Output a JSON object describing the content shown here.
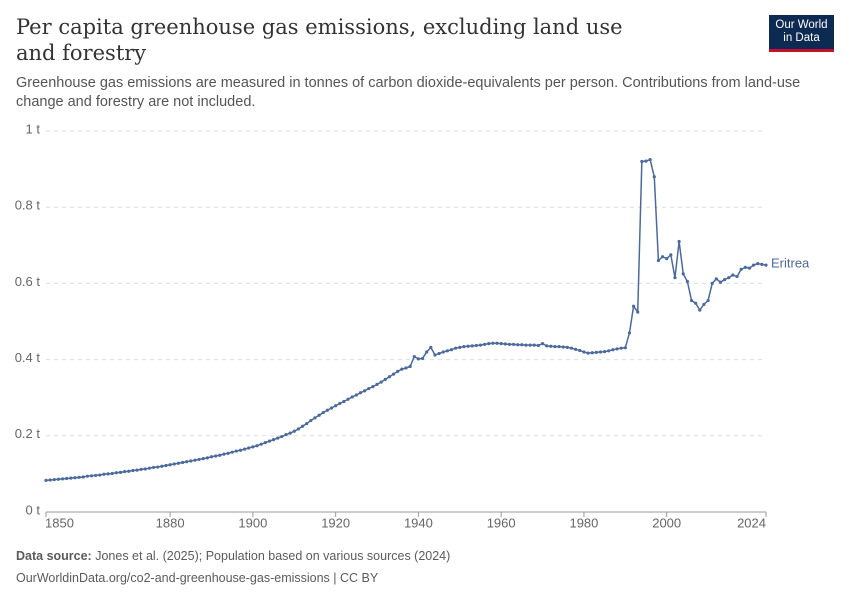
{
  "logo": [
    "Our World",
    "in Data"
  ],
  "chart_data": {
    "type": "line",
    "title": "Per capita greenhouse gas emissions, excluding land use and forestry",
    "subtitle": "Greenhouse gas emissions are measured in tonnes of carbon dioxide-equivalents per person. Contributions from land-use change and forestry are not included.",
    "x": [
      1850,
      1851,
      1852,
      1853,
      1854,
      1855,
      1856,
      1857,
      1858,
      1859,
      1860,
      1861,
      1862,
      1863,
      1864,
      1865,
      1866,
      1867,
      1868,
      1869,
      1870,
      1871,
      1872,
      1873,
      1874,
      1875,
      1876,
      1877,
      1878,
      1879,
      1880,
      1881,
      1882,
      1883,
      1884,
      1885,
      1886,
      1887,
      1888,
      1889,
      1890,
      1891,
      1892,
      1893,
      1894,
      1895,
      1896,
      1897,
      1898,
      1899,
      1900,
      1901,
      1902,
      1903,
      1904,
      1905,
      1906,
      1907,
      1908,
      1909,
      1910,
      1911,
      1912,
      1913,
      1914,
      1915,
      1916,
      1917,
      1918,
      1919,
      1920,
      1921,
      1922,
      1923,
      1924,
      1925,
      1926,
      1927,
      1928,
      1929,
      1930,
      1931,
      1932,
      1933,
      1934,
      1935,
      1936,
      1937,
      1938,
      1939,
      1940,
      1941,
      1942,
      1943,
      1944,
      1945,
      1946,
      1947,
      1948,
      1949,
      1950,
      1951,
      1952,
      1953,
      1954,
      1955,
      1956,
      1957,
      1958,
      1959,
      1960,
      1961,
      1962,
      1963,
      1964,
      1965,
      1966,
      1967,
      1968,
      1969,
      1970,
      1971,
      1972,
      1973,
      1974,
      1975,
      1976,
      1977,
      1978,
      1979,
      1980,
      1981,
      1982,
      1983,
      1984,
      1985,
      1986,
      1987,
      1988,
      1989,
      1990,
      1991,
      1992,
      1993,
      1994,
      1995,
      1996,
      1997,
      1998,
      1999,
      2000,
      2001,
      2002,
      2003,
      2004,
      2005,
      2006,
      2007,
      2008,
      2009,
      2010,
      2011,
      2012,
      2013,
      2014,
      2015,
      2016,
      2017,
      2018,
      2019,
      2020,
      2021,
      2022,
      2023,
      2024
    ],
    "series": [
      {
        "name": "Eritrea",
        "color": "#4c6a9c",
        "values": [
          0.083,
          0.084,
          0.085,
          0.086,
          0.087,
          0.088,
          0.089,
          0.09,
          0.091,
          0.092,
          0.094,
          0.095,
          0.096,
          0.097,
          0.099,
          0.1,
          0.101,
          0.103,
          0.104,
          0.106,
          0.107,
          0.109,
          0.11,
          0.112,
          0.113,
          0.115,
          0.117,
          0.118,
          0.12,
          0.122,
          0.124,
          0.126,
          0.128,
          0.13,
          0.132,
          0.134,
          0.136,
          0.138,
          0.14,
          0.142,
          0.145,
          0.147,
          0.149,
          0.152,
          0.154,
          0.157,
          0.16,
          0.162,
          0.165,
          0.168,
          0.171,
          0.174,
          0.178,
          0.182,
          0.186,
          0.19,
          0.194,
          0.198,
          0.203,
          0.207,
          0.212,
          0.218,
          0.225,
          0.232,
          0.24,
          0.247,
          0.254,
          0.261,
          0.267,
          0.273,
          0.279,
          0.285,
          0.29,
          0.296,
          0.302,
          0.307,
          0.313,
          0.318,
          0.324,
          0.329,
          0.335,
          0.341,
          0.348,
          0.355,
          0.362,
          0.369,
          0.375,
          0.378,
          0.382,
          0.408,
          0.402,
          0.403,
          0.42,
          0.432,
          0.412,
          0.416,
          0.42,
          0.423,
          0.426,
          0.43,
          0.432,
          0.434,
          0.435,
          0.436,
          0.437,
          0.438,
          0.44,
          0.442,
          0.443,
          0.443,
          0.442,
          0.441,
          0.44,
          0.44,
          0.439,
          0.439,
          0.438,
          0.438,
          0.438,
          0.437,
          0.442,
          0.436,
          0.435,
          0.434,
          0.434,
          0.433,
          0.432,
          0.43,
          0.427,
          0.424,
          0.42,
          0.417,
          0.418,
          0.419,
          0.42,
          0.421,
          0.423,
          0.426,
          0.428,
          0.43,
          0.431,
          0.47,
          0.54,
          0.525,
          0.92,
          0.921,
          0.925,
          0.88,
          0.66,
          0.67,
          0.665,
          0.675,
          0.615,
          0.71,
          0.625,
          0.605,
          0.555,
          0.548,
          0.53,
          0.545,
          0.555,
          0.6,
          0.612,
          0.603,
          0.61,
          0.615,
          0.622,
          0.618,
          0.637,
          0.642,
          0.64,
          0.648,
          0.652,
          0.65,
          0.648
        ]
      }
    ],
    "xlim": [
      1850,
      2024
    ],
    "xticks": [
      1850,
      1880,
      1900,
      1920,
      1940,
      1960,
      1980,
      2000,
      2024
    ],
    "ylim": [
      0,
      1
    ],
    "yticks": [
      {
        "value": 0,
        "label": "0 t"
      },
      {
        "value": 0.2,
        "label": "0.2 t"
      },
      {
        "value": 0.4,
        "label": "0.4 t"
      },
      {
        "value": 0.6,
        "label": "0.6 t"
      },
      {
        "value": 0.8,
        "label": "0.8 t"
      },
      {
        "value": 1,
        "label": "1 t"
      }
    ],
    "grid": true,
    "source_label": "Data source:",
    "source": "Jones et al. (2025); Population based on various sources (2024)",
    "url": "OurWorldinData.org/co2-and-greenhouse-gas-emissions | CC BY"
  }
}
